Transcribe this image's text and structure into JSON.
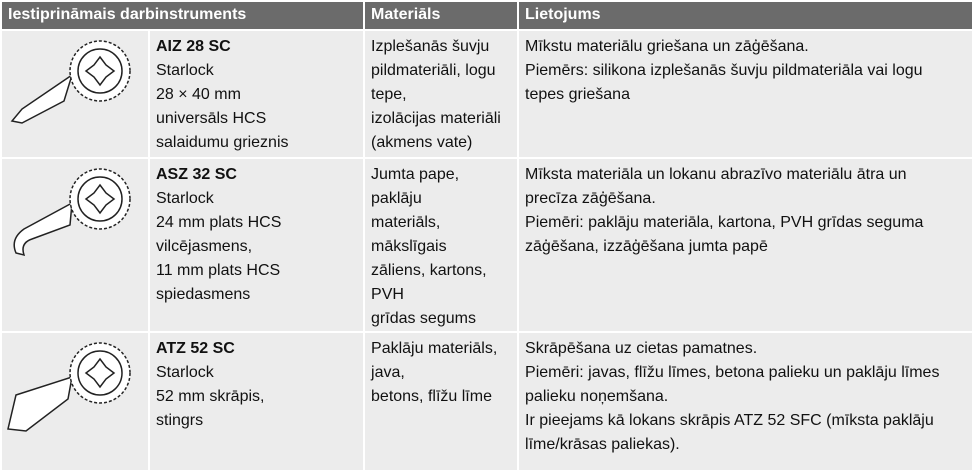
{
  "header": {
    "tool": "Iestiprināmais darbinstruments",
    "materials": "Materiāls",
    "usage": "Lietojums"
  },
  "rows": [
    {
      "name": "AIZ 28 SC",
      "description": [
        "Starlock",
        "28 × 40 mm",
        "universāls HCS",
        "salaidumu grieznis"
      ],
      "materials": [
        "Izplešanās šuvju",
        "pildmateriāli, logu tepe,",
        "izolācijas materiāli",
        "(akmens vate)"
      ],
      "usage": [
        "Mīkstu materiālu griešana un zāģēšana.",
        "Piemērs: silikona izplešanās šuvju pildmateriāla vai logu",
        "tepes griešana"
      ]
    },
    {
      "name": "ASZ 32 SC",
      "description": [
        "Starlock",
        "24 mm plats HCS",
        "vilcējasmens,",
        "11 mm plats HCS",
        "spiedasmens"
      ],
      "materials": [
        "Jumta pape, paklāju",
        "materiāls, mākslīgais",
        "zāliens, kartons, PVH",
        "grīdas segums"
      ],
      "usage": [
        "Mīksta materiāla un lokanu abrazīvo materiālu ātra un",
        "precīza zāģēšana.",
        "Piemēri: paklāju materiāla, kartona, PVH grīdas seguma",
        "zāģēšana, izzāģēšana jumta papē"
      ]
    },
    {
      "name": "ATZ 52 SC",
      "description": [
        "Starlock",
        "52 mm skrāpis,",
        "stingrs"
      ],
      "materials": [
        "Paklāju materiāls, java,",
        "betons, flīžu līme"
      ],
      "usage": [
        "Skrāpēšana uz cietas pamatnes.",
        "Piemēri: javas, flīžu līmes, betona palieku un paklāju līmes",
        "palieku noņemšana.",
        "Ir pieejams kā lokans skrāpis ATZ 52 SFC (mīksta paklāju",
        "līme/krāsas paliekas)."
      ]
    }
  ]
}
